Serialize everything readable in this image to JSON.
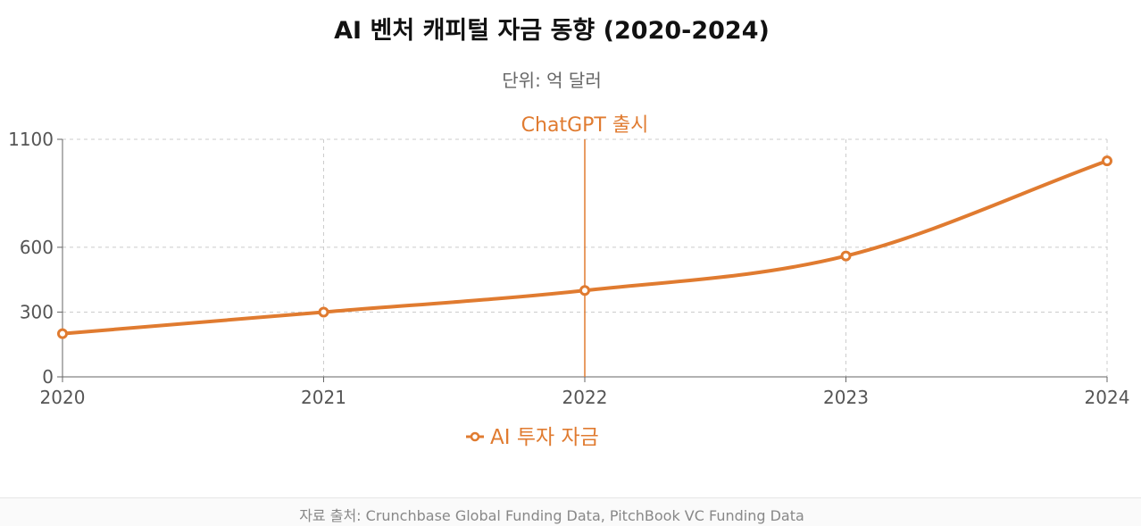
{
  "chart_data": {
    "type": "line",
    "title": "AI 벤처 캐피털 자금 동향 (2020-2024)",
    "subtitle": "단위: 억 달러",
    "categories": [
      "2020",
      "2021",
      "2022",
      "2023",
      "2024"
    ],
    "series": [
      {
        "name": "AI 투자 자금",
        "values": [
          200,
          300,
          400,
          560,
          1000
        ],
        "color": "#e07b30"
      }
    ],
    "ylim": [
      0,
      1100
    ],
    "yticks": [
      0,
      300,
      600,
      1100
    ],
    "grid": true,
    "legend_position": "bottom",
    "annotations": [
      {
        "x": "2022",
        "label": "ChatGPT 출시",
        "color": "#e07b30"
      }
    ]
  },
  "footer": {
    "source": "자료 출처: Crunchbase Global Funding Data, PitchBook VC Funding Data"
  }
}
